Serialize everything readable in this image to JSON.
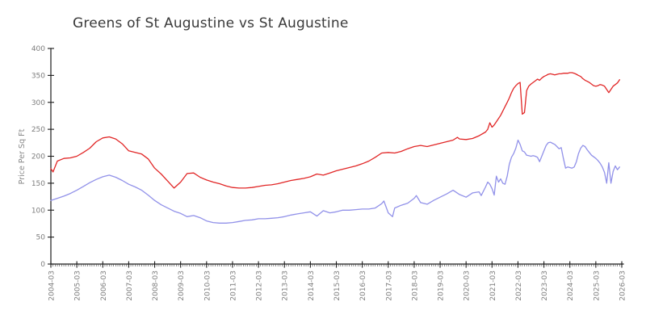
{
  "page": {
    "background": "#ffffff"
  },
  "chart_data": {
    "type": "line",
    "title": "Greens of St Augustine vs St Augustine",
    "xlabel": "",
    "ylabel": "Price Per Sq Ft",
    "ylim": [
      0,
      400
    ],
    "yticks": [
      0,
      50,
      100,
      150,
      200,
      250,
      300,
      350,
      400
    ],
    "x_range": [
      "2004-03",
      "2026-03"
    ],
    "xtick_labels": [
      "2004-03",
      "2005-03",
      "2006-03",
      "2007-03",
      "2008-03",
      "2009-03",
      "2010-03",
      "2011-03",
      "2012-03",
      "2013-03",
      "2014-03",
      "2015-03",
      "2016-03",
      "2017-03",
      "2018-03",
      "2019-03",
      "2020-03",
      "2021-03",
      "2022-03",
      "2023-03",
      "2024-03",
      "2025-03",
      "2026-03"
    ],
    "minor_ticks": "monthly",
    "grid": false,
    "legend_position": "none",
    "colors": {
      "axis": "#1c1c1c",
      "tick_labels": "#7d7d7d",
      "title": "#3a3a3a",
      "series1": "#e12626",
      "series2": "#9191e9"
    },
    "series": [
      {
        "name": "Greens of St Augustine",
        "color": "#e12626",
        "points": [
          [
            "2004-03",
            177
          ],
          [
            "2004-04",
            171
          ],
          [
            "2004-06",
            191
          ],
          [
            "2004-09",
            196
          ],
          [
            "2004-12",
            197
          ],
          [
            "2005-03",
            200
          ],
          [
            "2005-06",
            207
          ],
          [
            "2005-09",
            215
          ],
          [
            "2005-12",
            227
          ],
          [
            "2006-03",
            234
          ],
          [
            "2006-06",
            236
          ],
          [
            "2006-09",
            232
          ],
          [
            "2006-12",
            223
          ],
          [
            "2007-03",
            210
          ],
          [
            "2007-06",
            207
          ],
          [
            "2007-09",
            204
          ],
          [
            "2007-12",
            195
          ],
          [
            "2008-03",
            178
          ],
          [
            "2008-06",
            167
          ],
          [
            "2008-09",
            154
          ],
          [
            "2008-12",
            141
          ],
          [
            "2009-03",
            152
          ],
          [
            "2009-06",
            168
          ],
          [
            "2009-09",
            169
          ],
          [
            "2009-12",
            161
          ],
          [
            "2010-03",
            156
          ],
          [
            "2010-06",
            152
          ],
          [
            "2010-09",
            149
          ],
          [
            "2010-12",
            145
          ],
          [
            "2011-03",
            142
          ],
          [
            "2011-06",
            141
          ],
          [
            "2011-09",
            141
          ],
          [
            "2011-12",
            142
          ],
          [
            "2012-03",
            144
          ],
          [
            "2012-06",
            146
          ],
          [
            "2012-09",
            147
          ],
          [
            "2012-12",
            149
          ],
          [
            "2013-03",
            152
          ],
          [
            "2013-06",
            155
          ],
          [
            "2013-09",
            157
          ],
          [
            "2013-12",
            159
          ],
          [
            "2014-03",
            162
          ],
          [
            "2014-06",
            167
          ],
          [
            "2014-09",
            165
          ],
          [
            "2014-12",
            169
          ],
          [
            "2015-03",
            173
          ],
          [
            "2015-06",
            176
          ],
          [
            "2015-09",
            179
          ],
          [
            "2015-12",
            182
          ],
          [
            "2016-03",
            186
          ],
          [
            "2016-06",
            191
          ],
          [
            "2016-09",
            198
          ],
          [
            "2016-12",
            206
          ],
          [
            "2017-03",
            207
          ],
          [
            "2017-06",
            206
          ],
          [
            "2017-09",
            209
          ],
          [
            "2017-12",
            214
          ],
          [
            "2018-03",
            218
          ],
          [
            "2018-06",
            220
          ],
          [
            "2018-09",
            218
          ],
          [
            "2018-12",
            221
          ],
          [
            "2019-03",
            224
          ],
          [
            "2019-06",
            227
          ],
          [
            "2019-09",
            230
          ],
          [
            "2019-11",
            235
          ],
          [
            "2019-12",
            232
          ],
          [
            "2020-03",
            231
          ],
          [
            "2020-06",
            233
          ],
          [
            "2020-09",
            238
          ],
          [
            "2020-12",
            245
          ],
          [
            "2021-01",
            250
          ],
          [
            "2021-02",
            262
          ],
          [
            "2021-03",
            254
          ],
          [
            "2021-04",
            258
          ],
          [
            "2021-05",
            264
          ],
          [
            "2021-06",
            270
          ],
          [
            "2021-07",
            276
          ],
          [
            "2021-08",
            284
          ],
          [
            "2021-09",
            292
          ],
          [
            "2021-10",
            300
          ],
          [
            "2021-11",
            308
          ],
          [
            "2021-12",
            318
          ],
          [
            "2022-01",
            326
          ],
          [
            "2022-02",
            331
          ],
          [
            "2022-03",
            335
          ],
          [
            "2022-04",
            337
          ],
          [
            "2022-05",
            278
          ],
          [
            "2022-06",
            281
          ],
          [
            "2022-07",
            322
          ],
          [
            "2022-08",
            330
          ],
          [
            "2022-09",
            334
          ],
          [
            "2022-10",
            337
          ],
          [
            "2022-11",
            340
          ],
          [
            "2022-12",
            343
          ],
          [
            "2023-01",
            341
          ],
          [
            "2023-02",
            345
          ],
          [
            "2023-03",
            348
          ],
          [
            "2023-04",
            350
          ],
          [
            "2023-05",
            352
          ],
          [
            "2023-06",
            353
          ],
          [
            "2023-07",
            352
          ],
          [
            "2023-08",
            351
          ],
          [
            "2023-09",
            352
          ],
          [
            "2023-10",
            353
          ],
          [
            "2023-11",
            353
          ],
          [
            "2023-12",
            354
          ],
          [
            "2024-01",
            354
          ],
          [
            "2024-02",
            354
          ],
          [
            "2024-03",
            355
          ],
          [
            "2024-04",
            355
          ],
          [
            "2024-05",
            354
          ],
          [
            "2024-06",
            352
          ],
          [
            "2024-07",
            350
          ],
          [
            "2024-08",
            348
          ],
          [
            "2024-09",
            344
          ],
          [
            "2024-10",
            341
          ],
          [
            "2024-11",
            339
          ],
          [
            "2024-12",
            337
          ],
          [
            "2025-01",
            334
          ],
          [
            "2025-02",
            331
          ],
          [
            "2025-03",
            330
          ],
          [
            "2025-04",
            331
          ],
          [
            "2025-05",
            333
          ],
          [
            "2025-06",
            332
          ],
          [
            "2025-07",
            330
          ],
          [
            "2025-08",
            324
          ],
          [
            "2025-09",
            318
          ],
          [
            "2025-10",
            324
          ],
          [
            "2025-11",
            330
          ],
          [
            "2025-12",
            333
          ],
          [
            "2026-01",
            336
          ],
          [
            "2026-02",
            342
          ]
        ]
      },
      {
        "name": "St Augustine",
        "color": "#9191e9",
        "points": [
          [
            "2004-03",
            118
          ],
          [
            "2004-06",
            122
          ],
          [
            "2004-09",
            126
          ],
          [
            "2004-12",
            131
          ],
          [
            "2005-03",
            137
          ],
          [
            "2005-06",
            144
          ],
          [
            "2005-09",
            151
          ],
          [
            "2005-12",
            157
          ],
          [
            "2006-03",
            162
          ],
          [
            "2006-06",
            165
          ],
          [
            "2006-09",
            161
          ],
          [
            "2006-12",
            155
          ],
          [
            "2007-03",
            148
          ],
          [
            "2007-06",
            143
          ],
          [
            "2007-09",
            137
          ],
          [
            "2007-12",
            128
          ],
          [
            "2008-03",
            118
          ],
          [
            "2008-06",
            110
          ],
          [
            "2008-09",
            104
          ],
          [
            "2008-12",
            98
          ],
          [
            "2009-03",
            94
          ],
          [
            "2009-06",
            88
          ],
          [
            "2009-09",
            90
          ],
          [
            "2009-12",
            86
          ],
          [
            "2010-03",
            80
          ],
          [
            "2010-06",
            77
          ],
          [
            "2010-09",
            76
          ],
          [
            "2010-12",
            76
          ],
          [
            "2011-03",
            77
          ],
          [
            "2011-06",
            79
          ],
          [
            "2011-09",
            81
          ],
          [
            "2011-12",
            82
          ],
          [
            "2012-03",
            84
          ],
          [
            "2012-06",
            84
          ],
          [
            "2012-09",
            85
          ],
          [
            "2012-12",
            86
          ],
          [
            "2013-03",
            88
          ],
          [
            "2013-06",
            91
          ],
          [
            "2013-09",
            93
          ],
          [
            "2013-12",
            95
          ],
          [
            "2014-03",
            97
          ],
          [
            "2014-06",
            89
          ],
          [
            "2014-09",
            99
          ],
          [
            "2014-12",
            95
          ],
          [
            "2015-03",
            97
          ],
          [
            "2015-06",
            100
          ],
          [
            "2015-09",
            100
          ],
          [
            "2015-12",
            101
          ],
          [
            "2016-03",
            102
          ],
          [
            "2016-06",
            102
          ],
          [
            "2016-09",
            104
          ],
          [
            "2016-12",
            112
          ],
          [
            "2017-01",
            117
          ],
          [
            "2017-03",
            95
          ],
          [
            "2017-05",
            88
          ],
          [
            "2017-06",
            104
          ],
          [
            "2017-09",
            109
          ],
          [
            "2017-12",
            113
          ],
          [
            "2018-03",
            122
          ],
          [
            "2018-04",
            127
          ],
          [
            "2018-06",
            114
          ],
          [
            "2018-09",
            111
          ],
          [
            "2018-12",
            118
          ],
          [
            "2019-03",
            124
          ],
          [
            "2019-06",
            130
          ],
          [
            "2019-09",
            137
          ],
          [
            "2019-12",
            129
          ],
          [
            "2020-03",
            124
          ],
          [
            "2020-06",
            132
          ],
          [
            "2020-09",
            134
          ],
          [
            "2020-10",
            127
          ],
          [
            "2020-12",
            143
          ],
          [
            "2021-01",
            152
          ],
          [
            "2021-02",
            148
          ],
          [
            "2021-03",
            140
          ],
          [
            "2021-04",
            128
          ],
          [
            "2021-05",
            163
          ],
          [
            "2021-06",
            152
          ],
          [
            "2021-07",
            158
          ],
          [
            "2021-08",
            150
          ],
          [
            "2021-09",
            148
          ],
          [
            "2021-10",
            163
          ],
          [
            "2021-11",
            185
          ],
          [
            "2021-12",
            198
          ],
          [
            "2022-01",
            205
          ],
          [
            "2022-02",
            215
          ],
          [
            "2022-03",
            230
          ],
          [
            "2022-04",
            222
          ],
          [
            "2022-05",
            210
          ],
          [
            "2022-06",
            208
          ],
          [
            "2022-07",
            202
          ],
          [
            "2022-08",
            201
          ],
          [
            "2022-09",
            200
          ],
          [
            "2022-10",
            201
          ],
          [
            "2022-11",
            200
          ],
          [
            "2022-12",
            198
          ],
          [
            "2023-01",
            190
          ],
          [
            "2023-02",
            200
          ],
          [
            "2023-03",
            210
          ],
          [
            "2023-04",
            220
          ],
          [
            "2023-05",
            225
          ],
          [
            "2023-06",
            226
          ],
          [
            "2023-07",
            224
          ],
          [
            "2023-08",
            222
          ],
          [
            "2023-09",
            218
          ],
          [
            "2023-10",
            214
          ],
          [
            "2023-11",
            216
          ],
          [
            "2023-12",
            196
          ],
          [
            "2024-01",
            178
          ],
          [
            "2024-02",
            180
          ],
          [
            "2024-03",
            179
          ],
          [
            "2024-04",
            178
          ],
          [
            "2024-05",
            180
          ],
          [
            "2024-06",
            190
          ],
          [
            "2024-07",
            205
          ],
          [
            "2024-08",
            215
          ],
          [
            "2024-09",
            220
          ],
          [
            "2024-10",
            218
          ],
          [
            "2024-11",
            212
          ],
          [
            "2024-12",
            207
          ],
          [
            "2025-01",
            202
          ],
          [
            "2025-02",
            199
          ],
          [
            "2025-03",
            196
          ],
          [
            "2025-04",
            192
          ],
          [
            "2025-05",
            187
          ],
          [
            "2025-06",
            180
          ],
          [
            "2025-07",
            170
          ],
          [
            "2025-08",
            150
          ],
          [
            "2025-09",
            188
          ],
          [
            "2025-10",
            150
          ],
          [
            "2025-11",
            172
          ],
          [
            "2025-12",
            182
          ],
          [
            "2026-01",
            175
          ],
          [
            "2026-02",
            180
          ]
        ]
      }
    ]
  }
}
